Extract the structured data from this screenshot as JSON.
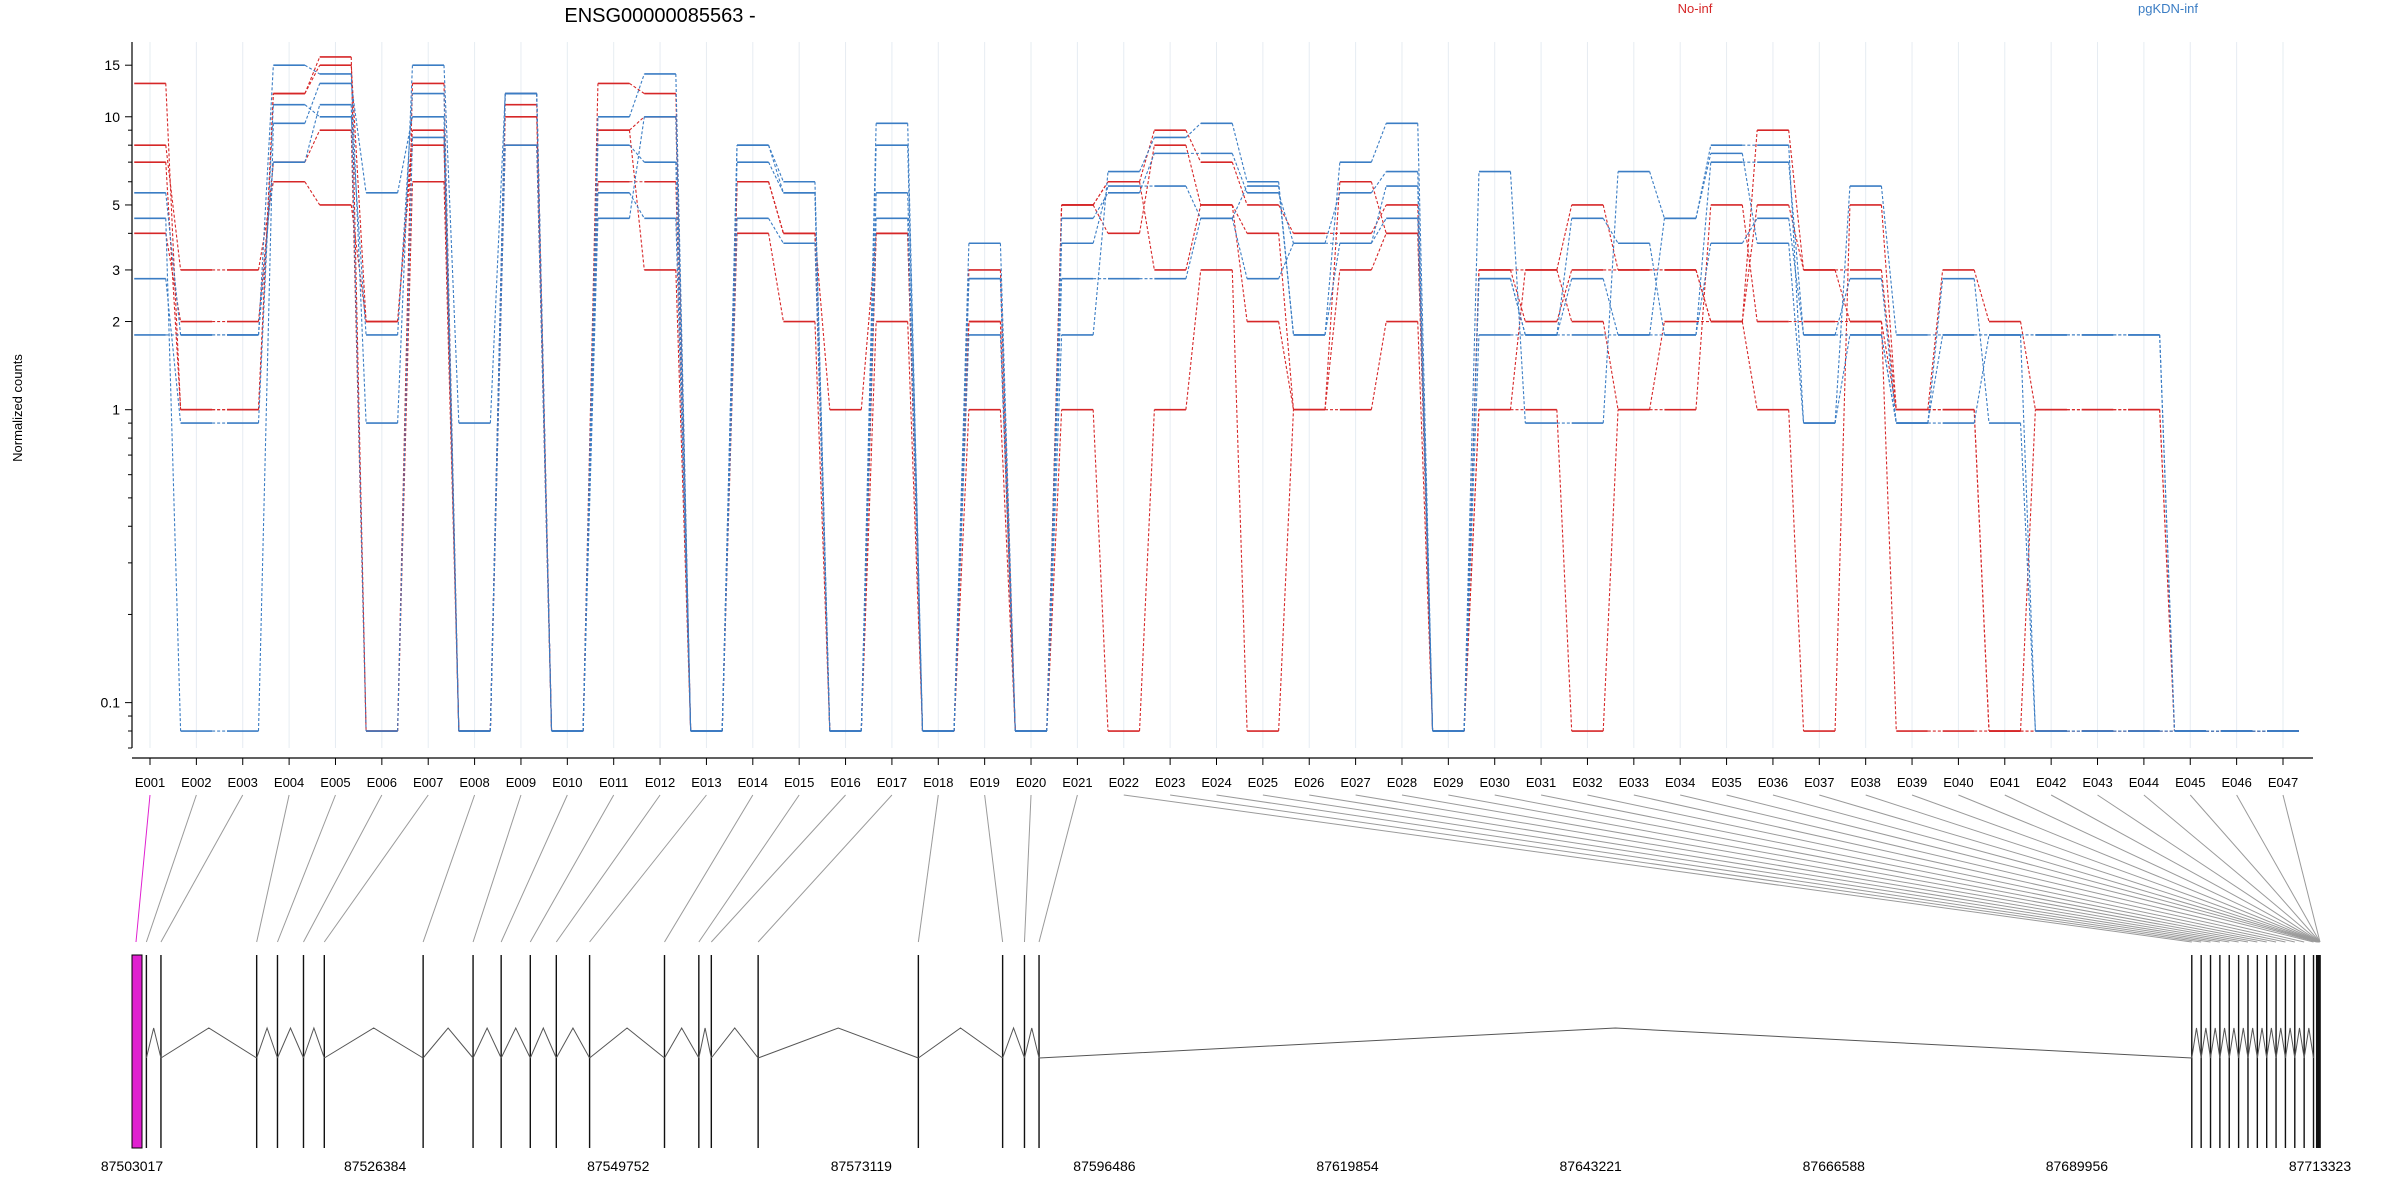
{
  "chart_data": {
    "type": "line",
    "title": "ENSG00000085563 -",
    "ylabel": "Normalized counts",
    "xlabel": "",
    "y_scale": "log",
    "ylim": [
      0.07,
      18
    ],
    "y_ticks": [
      0.1,
      1,
      2,
      3,
      5,
      10,
      15
    ],
    "grid": "vertical",
    "legend_position": "top",
    "legend": [
      {
        "label": "No-inf",
        "color": "#d62728"
      },
      {
        "label": "pgKDN-inf",
        "color": "#3b7dc4"
      }
    ],
    "exons": [
      "E001",
      "E002",
      "E003",
      "E004",
      "E005",
      "E006",
      "E007",
      "E008",
      "E009",
      "E010",
      "E011",
      "E012",
      "E013",
      "E014",
      "E015",
      "E016",
      "E017",
      "E018",
      "E019",
      "E020",
      "E021",
      "E022",
      "E023",
      "E024",
      "E025",
      "E026",
      "E027",
      "E028",
      "E029",
      "E030",
      "E031",
      "E032",
      "E033",
      "E034",
      "E035",
      "E036",
      "E037",
      "E038",
      "E039",
      "E040",
      "E041",
      "E042",
      "E043",
      "E044",
      "E045",
      "E046",
      "E047"
    ],
    "series": [
      {
        "group": "No-inf",
        "color": "#d62728",
        "values": [
          13,
          1,
          1,
          12,
          16,
          0.08,
          13,
          0.08,
          12,
          0.08,
          13,
          12,
          0.08,
          6,
          4,
          1,
          4,
          0.08,
          3,
          0.08,
          5,
          6,
          9,
          7,
          5,
          4,
          4,
          5,
          0.08,
          3,
          3,
          5,
          3,
          3,
          2,
          9,
          3,
          3,
          1,
          3,
          2,
          1,
          1,
          1,
          0.08,
          0.08,
          0.08
        ]
      },
      {
        "group": "No-inf",
        "color": "#d62728",
        "values": [
          8,
          3,
          3,
          6,
          5,
          2,
          8,
          0.08,
          11,
          0.08,
          9,
          10,
          0.08,
          4,
          2,
          0.08,
          2,
          0.08,
          2,
          0.08,
          5,
          4,
          8,
          5,
          4,
          1,
          3,
          4,
          0.08,
          1,
          1,
          0.08,
          1,
          1,
          5,
          2,
          2,
          2,
          0.08,
          0.08,
          0.08,
          0.08,
          0.08,
          0.08,
          0.08,
          0.08,
          0.08
        ]
      },
      {
        "group": "No-inf",
        "color": "#d62728",
        "values": [
          4,
          2,
          2,
          7,
          9,
          0.08,
          6,
          0.08,
          8,
          0.08,
          6,
          6,
          0.08,
          6,
          4,
          0.08,
          4,
          0.08,
          1,
          0.08,
          1,
          0.08,
          1,
          3,
          0.08,
          1,
          1,
          2,
          0.08,
          1,
          3,
          2,
          1,
          2,
          2,
          1,
          0.08,
          5,
          1,
          1,
          0.08,
          0.08,
          0.08,
          0.08,
          0.08,
          0.08,
          0.08
        ]
      },
      {
        "group": "No-inf",
        "color": "#d62728",
        "values": [
          7,
          1,
          1,
          12,
          15,
          2,
          9,
          0.08,
          10,
          0.08,
          9,
          3,
          0.08,
          6,
          4,
          0.08,
          4,
          0.08,
          2,
          0.08,
          5,
          6,
          3,
          5,
          2,
          1,
          6,
          4,
          0.08,
          3,
          2,
          3,
          3,
          3,
          2,
          5,
          3,
          2,
          1,
          1,
          0.08,
          1,
          1,
          1,
          0.08,
          0.08,
          0.08
        ]
      },
      {
        "group": "pgKDN-inf",
        "color": "#3b7dc4",
        "values": [
          5.5,
          1.8,
          1.8,
          15,
          14,
          0.9,
          15,
          0.9,
          12,
          0.08,
          10,
          14,
          0.08,
          8,
          6,
          0.08,
          9.5,
          0.08,
          3.7,
          0.08,
          1.8,
          6.5,
          8.5,
          9.5,
          6,
          1.8,
          7,
          9.5,
          0.08,
          6.5,
          0.9,
          0.9,
          6.5,
          4.5,
          8,
          8,
          0.9,
          5.8,
          1.8,
          1.8,
          1.8,
          1.8,
          1.8,
          1.8,
          0.08,
          0.08,
          0.08
        ]
      },
      {
        "group": "pgKDN-inf",
        "color": "#3b7dc4",
        "values": [
          2.8,
          0.9,
          0.9,
          11,
          10,
          1.8,
          12,
          0.08,
          12,
          0.08,
          8,
          7,
          0.08,
          7,
          5.5,
          0.08,
          8,
          0.08,
          2.8,
          0.08,
          4.5,
          5.5,
          7.5,
          7.5,
          5.5,
          3.7,
          5.5,
          6.5,
          0.08,
          2.8,
          1.8,
          4.5,
          3.7,
          1.8,
          7,
          7,
          1.8,
          2.8,
          0.9,
          2.8,
          0.9,
          0.08,
          0.08,
          0.08,
          0.08,
          0.08,
          0.08
        ]
      },
      {
        "group": "pgKDN-inf",
        "color": "#3b7dc4",
        "values": [
          4.5,
          0.08,
          0.08,
          9.5,
          13,
          5.5,
          10,
          0.08,
          8,
          0.08,
          5.5,
          4.5,
          0.08,
          4.5,
          3.7,
          0.08,
          5.5,
          0.08,
          1.8,
          0.08,
          2.8,
          2.8,
          2.8,
          4.5,
          2.8,
          3.7,
          3.7,
          4.5,
          0.08,
          1.8,
          1.8,
          1.8,
          1.8,
          1.8,
          3.7,
          4.5,
          1.8,
          1.8,
          0.9,
          0.9,
          1.8,
          0.08,
          0.08,
          0.08,
          0.08,
          0.08,
          0.08
        ]
      },
      {
        "group": "pgKDN-inf",
        "color": "#3b7dc4",
        "values": [
          1.8,
          1.8,
          1.8,
          7,
          11,
          0.08,
          8.5,
          0.08,
          12,
          0.08,
          4.5,
          10,
          0.08,
          8,
          5.5,
          0.08,
          4.5,
          0.08,
          2.8,
          0.08,
          3.7,
          5.8,
          5.8,
          4.5,
          5.8,
          1.8,
          3.7,
          5.8,
          0.08,
          2.8,
          1.8,
          2.8,
          1.8,
          4.5,
          7.5,
          3.7,
          0.9,
          1.8,
          0.9,
          1.8,
          1.8,
          1.8,
          1.8,
          1.8,
          0.08,
          0.08,
          0.08
        ]
      }
    ],
    "genome": {
      "ticks": [
        "87503017",
        "87526384",
        "87549752",
        "87573119",
        "87596486",
        "87619854",
        "87643221",
        "87666588",
        "87689956",
        "87713323"
      ],
      "start": 87503017,
      "end": 87713323,
      "highlight_exon": "E001",
      "highlight_color": "#e020d0",
      "exon_starts": [
        87503017,
        87504400,
        87505800,
        87515000,
        87517000,
        87519500,
        87521500,
        87531000,
        87535800,
        87538500,
        87541300,
        87543800,
        87547000,
        87554200,
        87557500,
        87558700,
        87563200,
        87578600,
        87586700,
        87588800,
        87590200,
        87701000,
        87701900,
        87702800,
        87703700,
        87704600,
        87705500,
        87706400,
        87707300,
        87708200,
        87709100,
        87710000,
        87710900,
        87711800,
        87712700,
        87713000,
        87713100,
        87713150,
        87713200,
        87713230,
        87713260,
        87713280,
        87713290,
        87713300,
        87713310,
        87713318,
        87713323
      ]
    }
  }
}
